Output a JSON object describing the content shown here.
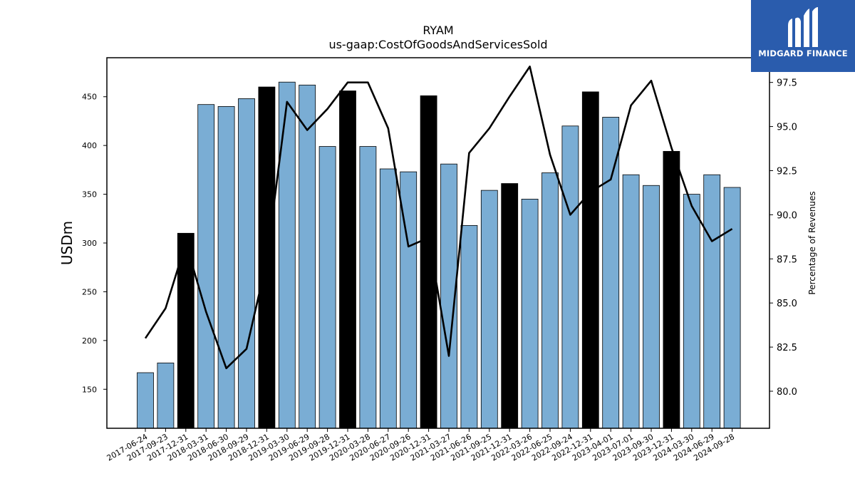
{
  "brand": {
    "name": "MIDGARD FINANCE",
    "background": "#2a5cad",
    "icon": "midgard-m-logo-icon"
  },
  "chart_data": {
    "type": "bar",
    "title": "RYAM",
    "subtitle": "us-gaap:CostOfGoodsAndServicesSold",
    "ylabel": "USDm",
    "y2label": "Percentage of Revenues",
    "ylim": [
      110,
      490
    ],
    "y2lim": [
      77.9,
      98.9
    ],
    "yticks": [
      150,
      200,
      250,
      300,
      350,
      400,
      450
    ],
    "y2ticks": [
      80.0,
      82.5,
      85.0,
      87.5,
      90.0,
      92.5,
      95.0,
      97.5
    ],
    "categories": [
      "2017-06-24",
      "2017-09-23",
      "2017-12-31",
      "2018-03-31",
      "2018-06-30",
      "2018-09-29",
      "2018-12-31",
      "2019-03-30",
      "2019-06-29",
      "2019-09-28",
      "2019-12-31",
      "2020-03-28",
      "2020-06-27",
      "2020-09-26",
      "2020-12-31",
      "2021-03-27",
      "2021-06-26",
      "2021-09-25",
      "2021-12-31",
      "2022-03-26",
      "2022-06-25",
      "2022-09-24",
      "2022-12-31",
      "2023-04-01",
      "2023-07-01",
      "2023-09-30",
      "2023-12-31",
      "2024-03-30",
      "2024-06-29",
      "2024-09-28"
    ],
    "series": [
      {
        "type": "bar",
        "values": [
          167,
          177,
          310,
          442,
          440,
          448,
          460,
          465,
          462,
          399,
          456,
          399,
          376,
          373,
          451,
          381,
          318,
          354,
          361,
          345,
          372,
          420,
          455,
          429,
          370,
          359,
          394,
          350,
          370,
          357
        ],
        "color": "#7aadd4",
        "highlight_color": "#000000",
        "highlight_categories": [
          "2017-12-31",
          "2018-12-31",
          "2019-12-31",
          "2020-12-31",
          "2021-12-31",
          "2022-12-31",
          "2023-12-31"
        ]
      },
      {
        "type": "line",
        "axis": "right",
        "values": [
          83.0,
          84.7,
          88.4,
          84.5,
          81.3,
          82.4,
          87.4,
          96.4,
          94.8,
          96.0,
          97.5,
          97.5,
          94.9,
          88.2,
          88.7,
          82.0,
          93.5,
          94.9,
          96.7,
          98.4,
          93.4,
          90.0,
          91.3,
          92.0,
          96.2,
          97.6,
          93.8,
          90.5,
          88.5,
          89.2
        ],
        "color": "#000000"
      }
    ],
    "grid": false,
    "legend": "none"
  }
}
